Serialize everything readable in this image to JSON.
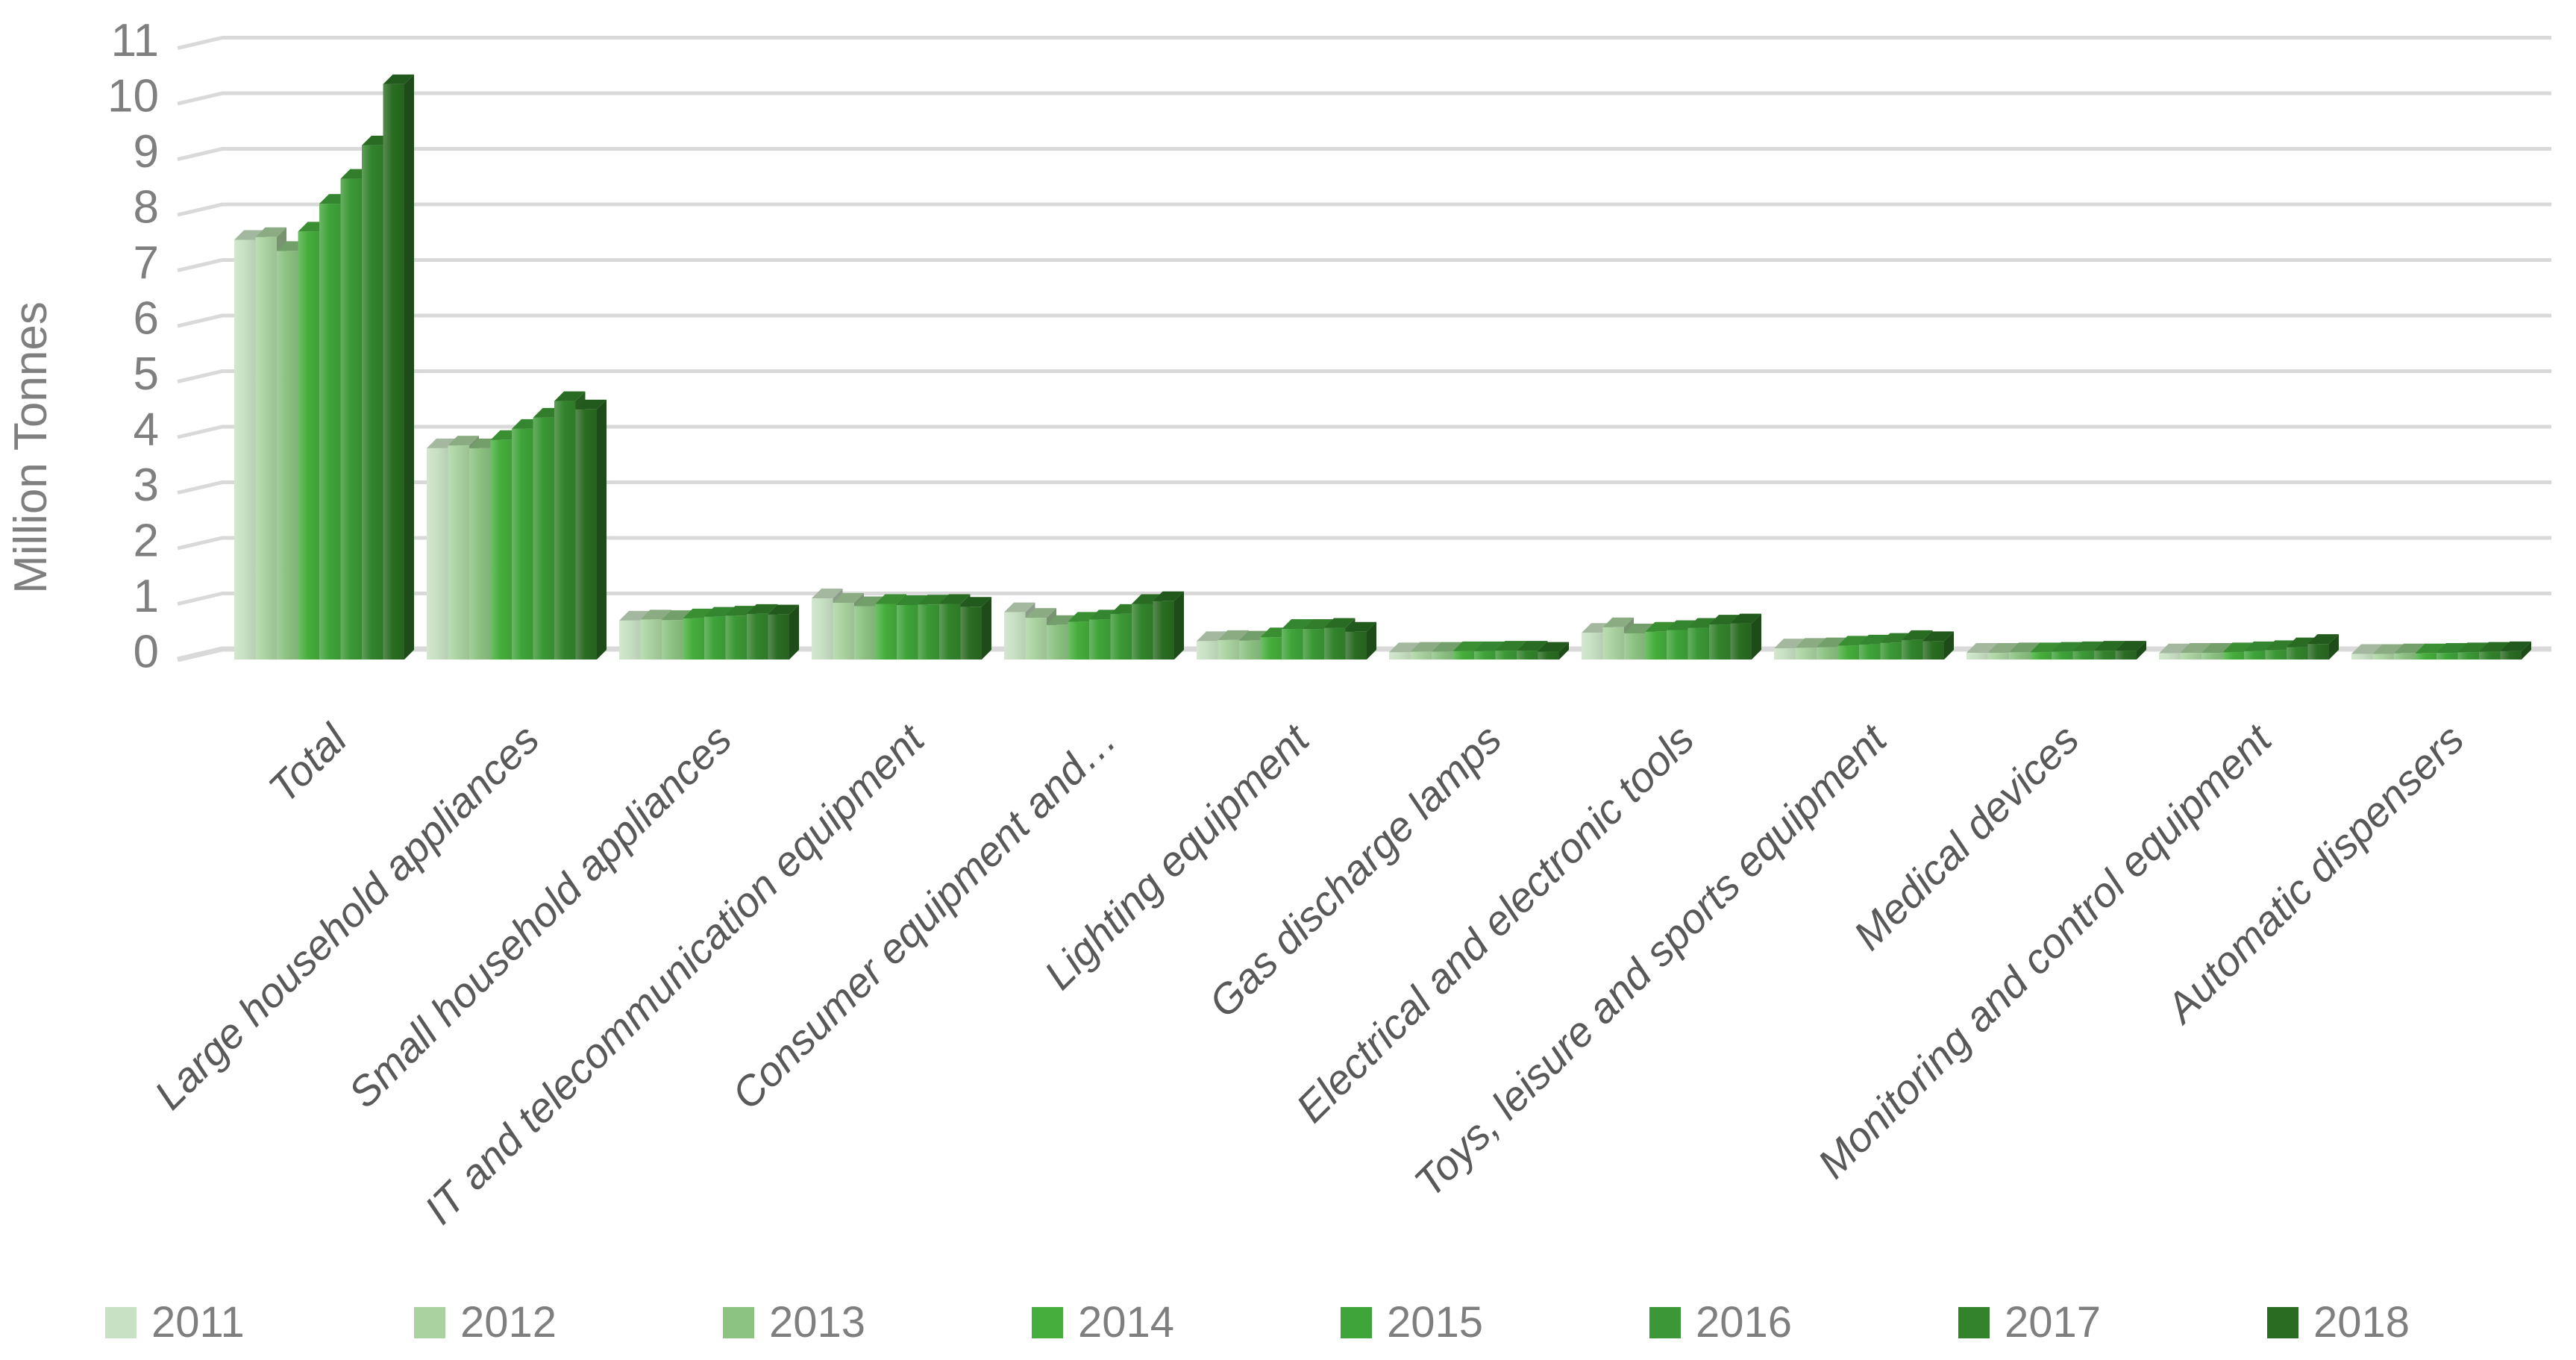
{
  "chart_data": {
    "type": "bar",
    "style": "3d-clustered-column",
    "title": "",
    "xlabel": "",
    "ylabel": "Million Tonnes",
    "ylim": [
      0,
      11
    ],
    "yticks": [
      0,
      1,
      2,
      3,
      4,
      5,
      6,
      7,
      8,
      9,
      10,
      11
    ],
    "grid": true,
    "legend_position": "bottom",
    "categories": [
      "Total",
      "Large household appliances",
      "Small household appliances",
      "IT and telecommunication equipment",
      "Consumer equipment and…",
      "Lighting equipment",
      "Gas discharge lamps",
      "Electrical and electronic tools",
      "Toys, leisure and sports equipment",
      "Medical devices",
      "Monitoring and control equipment",
      "Automatic dispensers"
    ],
    "series": [
      {
        "name": "2011",
        "color": "#c8e0c3",
        "values": [
          7.55,
          3.8,
          0.7,
          1.1,
          0.85,
          0.33,
          0.13,
          0.48,
          0.2,
          0.12,
          0.11,
          0.1
        ]
      },
      {
        "name": "2012",
        "color": "#aad2a0",
        "values": [
          7.6,
          3.85,
          0.72,
          1.02,
          0.75,
          0.35,
          0.14,
          0.58,
          0.21,
          0.12,
          0.12,
          0.1
        ]
      },
      {
        "name": "2013",
        "color": "#8cc282",
        "values": [
          7.35,
          3.8,
          0.71,
          0.96,
          0.62,
          0.34,
          0.14,
          0.47,
          0.22,
          0.13,
          0.12,
          0.11
        ]
      },
      {
        "name": "2014",
        "color": "#46ae3c",
        "values": [
          7.7,
          3.95,
          0.74,
          1.0,
          0.68,
          0.4,
          0.15,
          0.5,
          0.25,
          0.13,
          0.13,
          0.11
        ]
      },
      {
        "name": "2015",
        "color": "#3fa43a",
        "values": [
          8.2,
          4.15,
          0.77,
          0.98,
          0.72,
          0.55,
          0.15,
          0.53,
          0.27,
          0.14,
          0.15,
          0.12
        ]
      },
      {
        "name": "2016",
        "color": "#3c9836",
        "values": [
          8.65,
          4.35,
          0.79,
          0.99,
          0.82,
          0.55,
          0.16,
          0.57,
          0.3,
          0.15,
          0.17,
          0.13
        ]
      },
      {
        "name": "2017",
        "color": "#33832c",
        "values": [
          9.25,
          4.65,
          0.82,
          1.0,
          1.0,
          0.57,
          0.16,
          0.63,
          0.35,
          0.16,
          0.22,
          0.14
        ]
      },
      {
        "name": "2018",
        "color": "#2a6c22",
        "values": [
          10.35,
          4.5,
          0.81,
          0.95,
          1.05,
          0.5,
          0.14,
          0.65,
          0.33,
          0.16,
          0.28,
          0.15
        ]
      }
    ]
  },
  "colors": {
    "gridline": "#d9d9d9",
    "axis_text": "#7f7f7f",
    "category_text": "#595959",
    "background": "#ffffff"
  }
}
